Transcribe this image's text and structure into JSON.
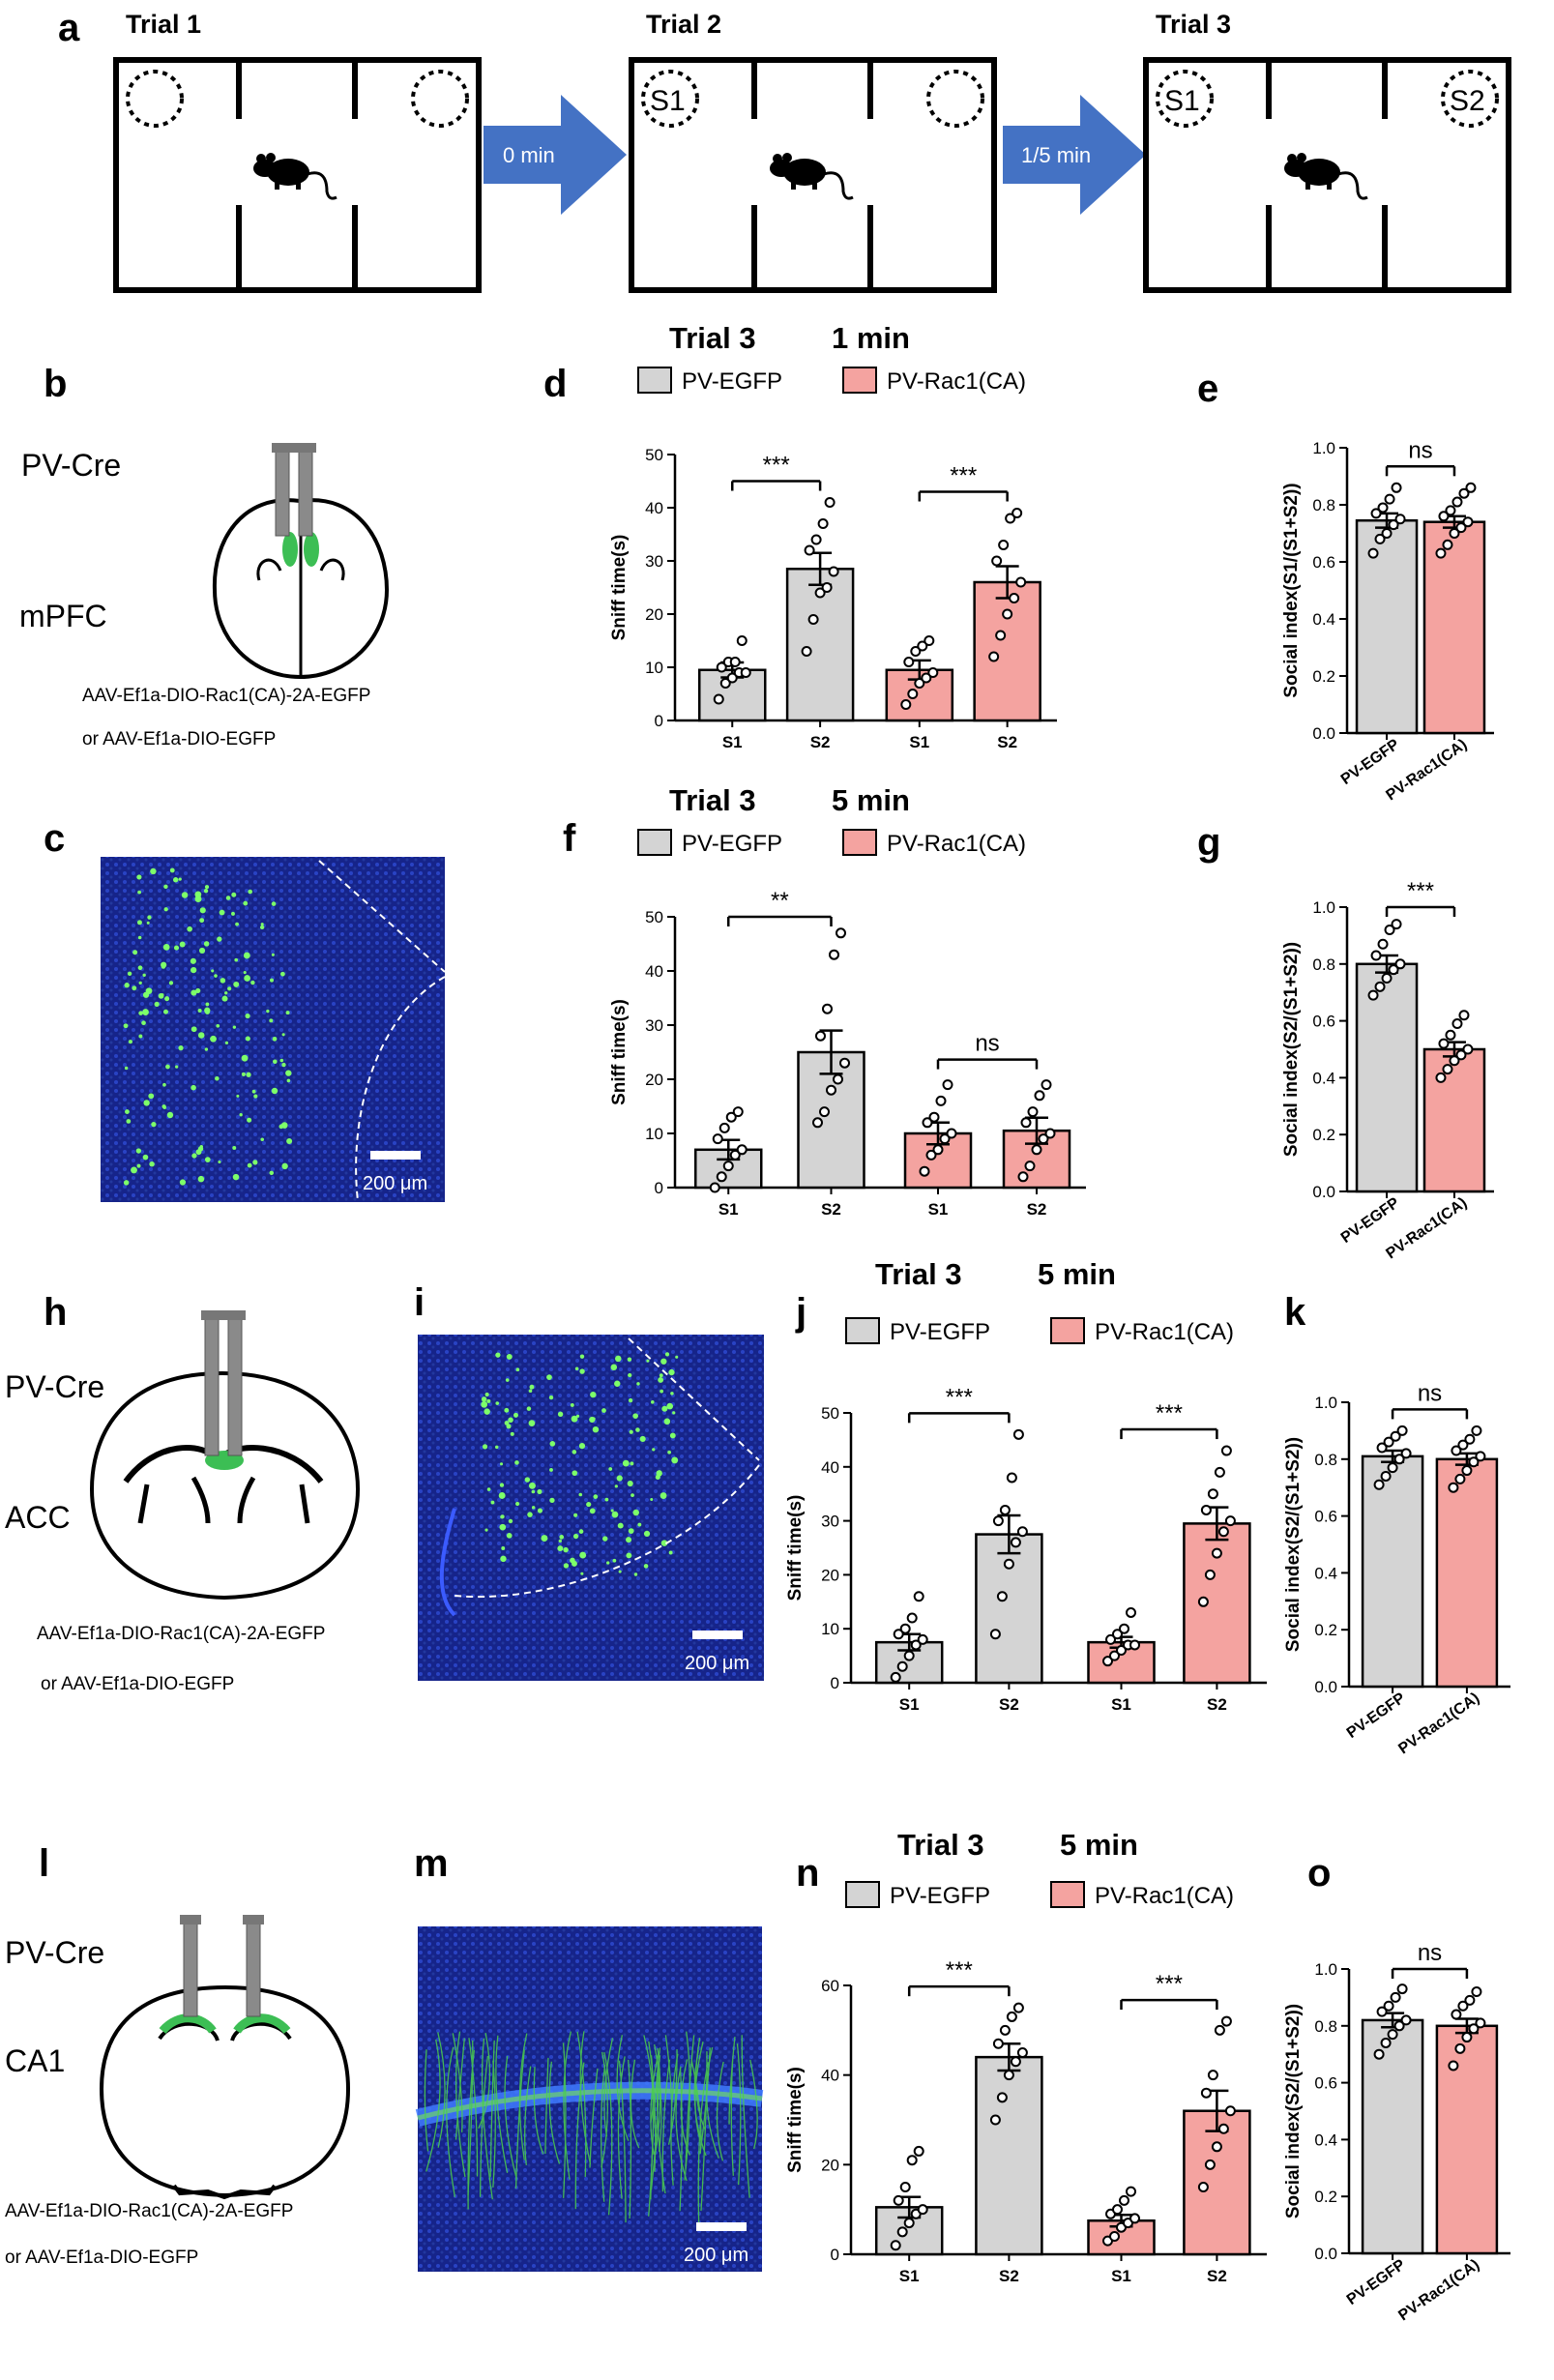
{
  "colors": {
    "gray_bar": "#d4d4d4",
    "pink_bar": "#f4a3a0",
    "arrow_blue": "#4472c4",
    "green_text": "#5cc953",
    "green_label": "#33cc33",
    "virus_green": "#3cbe54"
  },
  "panel_labels": [
    "a",
    "b",
    "c",
    "d",
    "e",
    "f",
    "g",
    "h",
    "i",
    "j",
    "k",
    "l",
    "m",
    "n",
    "o"
  ],
  "panel_a": {
    "trials": [
      "Trial 1",
      "Trial 2",
      "Trial 3"
    ],
    "arrows": [
      "0 min",
      "1/5 min"
    ],
    "stimuli": [
      "S1",
      "S1",
      "S2"
    ]
  },
  "schematics": {
    "b": {
      "line": "PV-Cre",
      "region": "mPFC"
    },
    "h": {
      "line": "PV-Cre",
      "region": "ACC"
    },
    "l": {
      "line": "PV-Cre",
      "region": "CA1"
    },
    "virus_line1": "AAV-Ef1a-DIO-Rac1(CA)-2A-EGFP",
    "virus_line2": "or AAV-Ef1a-DIO-EGFP"
  },
  "micrographs": {
    "scale": "200 μm"
  },
  "legend": {
    "egfp": "PV-EGFP",
    "rac1": "PV-Rac1(CA)"
  },
  "chart_data": [
    {
      "id": "d",
      "type": "bar",
      "title": "Trial 3",
      "subtitle": "1 min",
      "ylabel": "Sniff time(s)",
      "ylim": [
        0,
        50
      ],
      "yticks": [
        0,
        10,
        20,
        30,
        40,
        50
      ],
      "categories": [
        "S1",
        "S2",
        "S1",
        "S2"
      ],
      "values": [
        9.5,
        28.5,
        9.5,
        26
      ],
      "sem": [
        1.4,
        3,
        1.8,
        3
      ],
      "groups": [
        "PV-EGFP",
        "PV-EGFP",
        "PV-Rac1(CA)",
        "PV-Rac1(CA)"
      ],
      "points": [
        [
          4,
          7,
          8,
          9,
          9,
          10,
          11,
          11,
          15
        ],
        [
          13,
          19,
          24,
          25,
          28,
          32,
          34,
          37,
          41
        ],
        [
          3,
          5,
          7,
          8,
          9,
          11,
          13,
          14,
          15
        ],
        [
          12,
          16,
          20,
          23,
          26,
          30,
          33,
          38,
          39
        ]
      ],
      "significance": [
        {
          "pair": [
            0,
            1
          ],
          "label": "***"
        },
        {
          "pair": [
            2,
            3
          ],
          "label": "***"
        }
      ]
    },
    {
      "id": "e",
      "type": "bar",
      "title": "",
      "ylabel": "Social index(S1/(S1+S2))",
      "ylim": [
        0,
        1.0
      ],
      "yticks": [
        0.0,
        0.2,
        0.4,
        0.6,
        0.8,
        1.0
      ],
      "categories": [
        "PV-EGFP",
        "PV-Rac1(CA)"
      ],
      "values": [
        0.745,
        0.74
      ],
      "sem": [
        0.025,
        0.02
      ],
      "points": [
        [
          0.63,
          0.68,
          0.7,
          0.73,
          0.75,
          0.77,
          0.79,
          0.82,
          0.86
        ],
        [
          0.63,
          0.66,
          0.7,
          0.72,
          0.74,
          0.76,
          0.78,
          0.81,
          0.84,
          0.86
        ]
      ],
      "significance": [
        {
          "pair": [
            0,
            1
          ],
          "label": "ns"
        }
      ]
    },
    {
      "id": "f",
      "type": "bar",
      "title": "Trial 3",
      "subtitle": "5 min",
      "ylabel": "Sniff time(s)",
      "ylim": [
        0,
        50
      ],
      "yticks": [
        0,
        10,
        20,
        30,
        40,
        50
      ],
      "categories": [
        "S1",
        "S2",
        "S1",
        "S2"
      ],
      "values": [
        7,
        25,
        10,
        10.5
      ],
      "sem": [
        1.8,
        4,
        2,
        2.4
      ],
      "groups": [
        "PV-EGFP",
        "PV-EGFP",
        "PV-Rac1(CA)",
        "PV-Rac1(CA)"
      ],
      "points": [
        [
          0,
          2,
          4,
          6,
          7,
          9,
          11,
          13,
          14
        ],
        [
          12,
          14,
          18,
          20,
          23,
          28,
          33,
          43,
          47
        ],
        [
          3,
          6,
          7,
          9,
          10,
          12,
          13,
          16,
          19
        ],
        [
          2,
          4,
          7,
          9,
          10,
          12,
          14,
          17,
          19
        ]
      ],
      "significance": [
        {
          "pair": [
            0,
            1
          ],
          "label": "**"
        },
        {
          "pair": [
            2,
            3
          ],
          "label": "ns"
        }
      ]
    },
    {
      "id": "g",
      "type": "bar",
      "title": "",
      "ylabel": "Social index(S2/(S1+S2))",
      "ylim": [
        0,
        1.0
      ],
      "yticks": [
        0.0,
        0.2,
        0.4,
        0.6,
        0.8,
        1.0
      ],
      "categories": [
        "PV-EGFP",
        "PV-Rac1(CA)"
      ],
      "values": [
        0.8,
        0.5
      ],
      "sem": [
        0.03,
        0.025
      ],
      "points": [
        [
          0.69,
          0.72,
          0.75,
          0.78,
          0.8,
          0.83,
          0.87,
          0.92,
          0.94
        ],
        [
          0.4,
          0.43,
          0.46,
          0.48,
          0.5,
          0.52,
          0.55,
          0.59,
          0.62
        ]
      ],
      "significance": [
        {
          "pair": [
            0,
            1
          ],
          "label": "***"
        }
      ]
    },
    {
      "id": "j",
      "type": "bar",
      "title": "Trial 3",
      "subtitle": "5 min",
      "ylabel": "Sniff time(s)",
      "ylim": [
        0,
        50
      ],
      "yticks": [
        0,
        10,
        20,
        30,
        40,
        50
      ],
      "categories": [
        "S1",
        "S2",
        "S1",
        "S2"
      ],
      "values": [
        7.5,
        27.5,
        7.5,
        29.5
      ],
      "sem": [
        1.5,
        3.5,
        1,
        3
      ],
      "groups": [
        "PV-EGFP",
        "PV-EGFP",
        "PV-Rac1(CA)",
        "PV-Rac1(CA)"
      ],
      "points": [
        [
          1,
          3,
          5,
          7,
          8,
          9,
          10,
          12,
          16
        ],
        [
          9,
          16,
          22,
          26,
          28,
          30,
          32,
          38,
          46
        ],
        [
          4,
          5,
          6,
          7,
          7,
          8,
          9,
          10,
          13
        ],
        [
          15,
          20,
          24,
          28,
          30,
          32,
          35,
          39,
          43
        ]
      ],
      "significance": [
        {
          "pair": [
            0,
            1
          ],
          "label": "***"
        },
        {
          "pair": [
            2,
            3
          ],
          "label": "***"
        }
      ]
    },
    {
      "id": "k",
      "type": "bar",
      "title": "",
      "ylabel": "Social index(S2/(S1+S2))",
      "ylim": [
        0,
        1.0
      ],
      "yticks": [
        0.0,
        0.2,
        0.4,
        0.6,
        0.8,
        1.0
      ],
      "categories": [
        "PV-EGFP",
        "PV-Rac1(CA)"
      ],
      "values": [
        0.81,
        0.8
      ],
      "sem": [
        0.02,
        0.02
      ],
      "points": [
        [
          0.71,
          0.74,
          0.77,
          0.8,
          0.82,
          0.84,
          0.86,
          0.88,
          0.9
        ],
        [
          0.7,
          0.73,
          0.76,
          0.79,
          0.81,
          0.83,
          0.85,
          0.87,
          0.9
        ]
      ],
      "significance": [
        {
          "pair": [
            0,
            1
          ],
          "label": "ns"
        }
      ]
    },
    {
      "id": "n",
      "type": "bar",
      "title": "Trial 3",
      "subtitle": "5 min",
      "ylabel": "Sniff time(s)",
      "ylim": [
        0,
        60
      ],
      "yticks": [
        0,
        20,
        40,
        60
      ],
      "categories": [
        "S1",
        "S2",
        "S1",
        "S2"
      ],
      "values": [
        10.5,
        44,
        7.5,
        32
      ],
      "sem": [
        2.3,
        3,
        1.3,
        4.5
      ],
      "groups": [
        "PV-EGFP",
        "PV-EGFP",
        "PV-Rac1(CA)",
        "PV-Rac1(CA)"
      ],
      "points": [
        [
          2,
          5,
          7,
          9,
          10,
          12,
          15,
          21,
          23
        ],
        [
          30,
          35,
          40,
          43,
          45,
          47,
          50,
          53,
          55
        ],
        [
          3,
          4,
          6,
          7,
          8,
          9,
          10,
          12,
          14
        ],
        [
          15,
          20,
          24,
          28,
          32,
          36,
          40,
          50,
          52
        ]
      ],
      "significance": [
        {
          "pair": [
            0,
            1
          ],
          "label": "***"
        },
        {
          "pair": [
            2,
            3
          ],
          "label": "***"
        }
      ]
    },
    {
      "id": "o",
      "type": "bar",
      "title": "",
      "ylabel": "Social index(S2/(S1+S2))",
      "ylim": [
        0,
        1.0
      ],
      "yticks": [
        0.0,
        0.2,
        0.4,
        0.6,
        0.8,
        1.0
      ],
      "categories": [
        "PV-EGFP",
        "PV-Rac1(CA)"
      ],
      "values": [
        0.82,
        0.8
      ],
      "sem": [
        0.025,
        0.025
      ],
      "points": [
        [
          0.7,
          0.74,
          0.77,
          0.8,
          0.82,
          0.85,
          0.87,
          0.9,
          0.93
        ],
        [
          0.66,
          0.72,
          0.76,
          0.79,
          0.81,
          0.84,
          0.87,
          0.89,
          0.92
        ]
      ],
      "significance": [
        {
          "pair": [
            0,
            1
          ],
          "label": "ns"
        }
      ]
    }
  ]
}
